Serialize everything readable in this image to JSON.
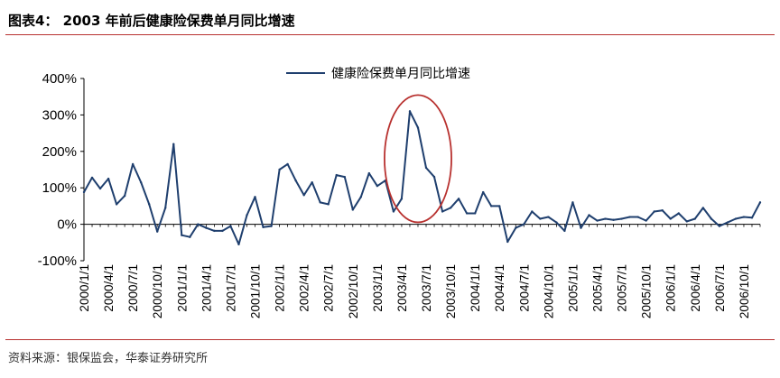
{
  "header": {
    "title": "图表4： 2003 年前后健康险保费单月同比增速"
  },
  "footer": {
    "source": "资料来源：银保监会，华泰证券研究所"
  },
  "colors": {
    "line": "#1f3f6e",
    "rule": "#b8312f",
    "highlight": "#b8312f",
    "axis": "#000000"
  },
  "chart_data": {
    "type": "line",
    "title": "",
    "xlabel": "",
    "ylabel": "",
    "ylim": [
      -100,
      400
    ],
    "yticks": [
      -100,
      0,
      100,
      200,
      300,
      400
    ],
    "ytick_labels": [
      "-100%",
      "0%",
      "100%",
      "200%",
      "300%",
      "400%"
    ],
    "x_tick_labels": [
      "2000/1/1",
      "2000/4/1",
      "2000/7/1",
      "2000/10/1",
      "2001/1/1",
      "2001/4/1",
      "2001/7/1",
      "2001/10/1",
      "2002/1/1",
      "2002/4/1",
      "2002/7/1",
      "2002/10/1",
      "2003/1/1",
      "2003/4/1",
      "2003/7/1",
      "2003/10/1",
      "2004/1/1",
      "2004/4/1",
      "2004/7/1",
      "2004/10/1",
      "2005/1/1",
      "2005/4/1",
      "2005/7/1",
      "2005/10/1",
      "2006/1/1",
      "2006/4/1",
      "2006/7/1",
      "2006/10/1"
    ],
    "legend": {
      "position": "top-center"
    },
    "highlight": {
      "type": "ellipse",
      "from": "2003/3/1",
      "to": "2003/9/1"
    },
    "series": [
      {
        "name": "健康险保费单月同比增速",
        "start": "2000/1/1",
        "frequency": "monthly",
        "values": [
          88,
          128,
          98,
          125,
          55,
          78,
          165,
          115,
          55,
          -20,
          45,
          220,
          -30,
          -35,
          0,
          -10,
          -18,
          -18,
          -5,
          -55,
          25,
          75,
          -8,
          -5,
          150,
          165,
          120,
          80,
          115,
          60,
          55,
          135,
          130,
          40,
          75,
          140,
          105,
          120,
          35,
          70,
          310,
          265,
          155,
          130,
          35,
          45,
          70,
          30,
          30,
          88,
          50,
          50,
          -48,
          -10,
          0,
          35,
          15,
          20,
          5,
          -18,
          60,
          -10,
          25,
          10,
          15,
          12,
          15,
          20,
          20,
          10,
          35,
          38,
          15,
          30,
          8,
          15,
          45,
          15,
          -5,
          5,
          15,
          20,
          18,
          60
        ]
      }
    ]
  }
}
